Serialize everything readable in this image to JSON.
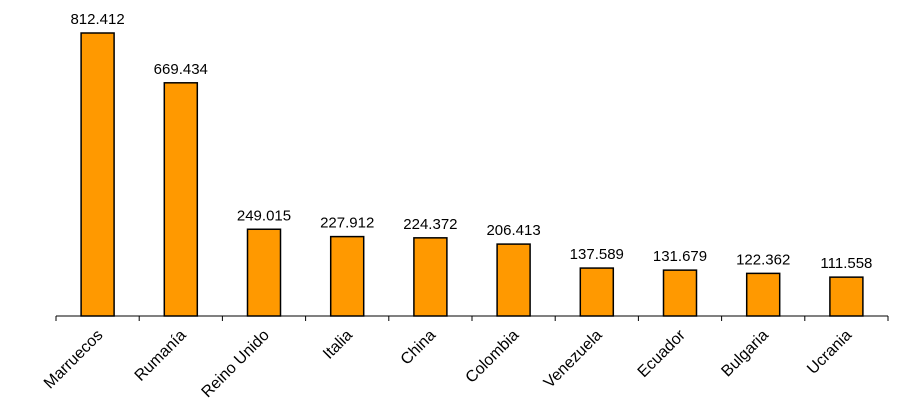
{
  "chart_data": {
    "type": "bar",
    "categories": [
      "Marruecos",
      "Rumanía",
      "Reino Unido",
      "Italia",
      "China",
      "Colombia",
      "Venezuela",
      "Ecuador",
      "Bulgaria",
      "Ucrania"
    ],
    "values": [
      812412,
      669434,
      249015,
      227912,
      224372,
      206413,
      137589,
      131679,
      122362,
      111558
    ],
    "value_labels": [
      "812.412",
      "669.434",
      "249.015",
      "227.912",
      "224.372",
      "206.413",
      "137.589",
      "131.679",
      "122.362",
      "111.558"
    ],
    "title": "",
    "xlabel": "",
    "ylabel": "",
    "ylim": [
      0,
      812412
    ],
    "grid": false,
    "legend": "none",
    "colors": {
      "bar_fill": "#FF9900",
      "bar_stroke": "#000000",
      "axis": "#000000"
    }
  }
}
